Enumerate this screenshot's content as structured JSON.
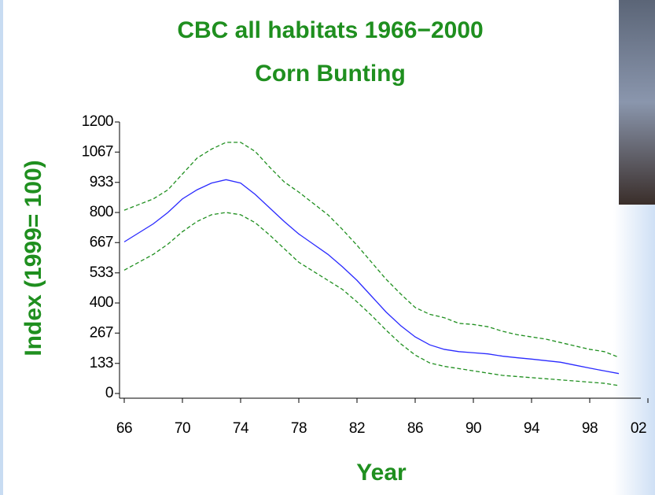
{
  "chart_data": {
    "type": "line",
    "title": "CBC all habitats 1966−2000",
    "subtitle": "Corn Bunting",
    "x_label": "Year",
    "y_label": "Index (1999= 100)",
    "x": [
      1966,
      1967,
      1968,
      1969,
      1970,
      1971,
      1972,
      1973,
      1974,
      1975,
      1976,
      1977,
      1978,
      1979,
      1980,
      1981,
      1982,
      1983,
      1984,
      1985,
      1986,
      1987,
      1988,
      1989,
      1990,
      1991,
      1992,
      1993,
      1994,
      1995,
      1996,
      1997,
      1998,
      1999,
      2000
    ],
    "series": [
      {
        "color": "#2a2aff",
        "dashed": false,
        "values": [
          670,
          710,
          750,
          800,
          860,
          900,
          930,
          945,
          930,
          880,
          820,
          760,
          705,
          660,
          615,
          560,
          500,
          430,
          360,
          300,
          250,
          215,
          195,
          185,
          180,
          175,
          165,
          158,
          152,
          145,
          138,
          125,
          112,
          100,
          88
        ]
      },
      {
        "color": "#1f8f1f",
        "dashed": true,
        "values": [
          810,
          835,
          860,
          900,
          970,
          1040,
          1080,
          1110,
          1110,
          1070,
          1000,
          935,
          890,
          840,
          790,
          725,
          655,
          580,
          505,
          440,
          380,
          350,
          335,
          310,
          305,
          295,
          275,
          260,
          250,
          240,
          225,
          210,
          195,
          185,
          160
        ]
      },
      {
        "color": "#1f8f1f",
        "dashed": true,
        "values": [
          545,
          580,
          615,
          660,
          715,
          760,
          790,
          800,
          790,
          755,
          700,
          640,
          580,
          540,
          500,
          460,
          405,
          345,
          280,
          220,
          170,
          135,
          120,
          110,
          100,
          90,
          80,
          75,
          70,
          65,
          60,
          55,
          50,
          45,
          35
        ]
      }
    ],
    "xlim": [
      1966,
      2002
    ],
    "xticks": [
      {
        "value": 1966,
        "label": "66"
      },
      {
        "value": 1970,
        "label": "70"
      },
      {
        "value": 1974,
        "label": "74"
      },
      {
        "value": 1978,
        "label": "78"
      },
      {
        "value": 1982,
        "label": "82"
      },
      {
        "value": 1986,
        "label": "86"
      },
      {
        "value": 1990,
        "label": "90"
      },
      {
        "value": 1994,
        "label": "94"
      },
      {
        "value": 1998,
        "label": "98"
      },
      {
        "value": 2002,
        "label": "02"
      }
    ],
    "ylim": [
      0,
      1200
    ],
    "yticks": [
      0,
      133,
      267,
      400,
      533,
      667,
      800,
      933,
      1067,
      1200
    ]
  }
}
